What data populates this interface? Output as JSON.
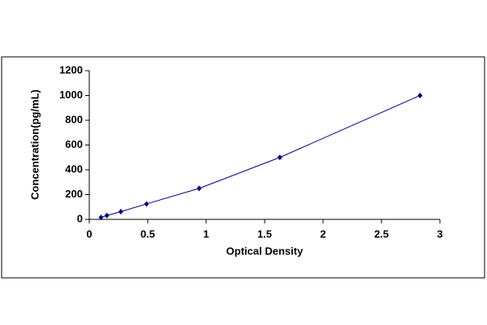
{
  "chart_data": {
    "type": "scatter",
    "x_label": "Optical Density",
    "y_label": "Concentration(pg/mL)",
    "series": [
      {
        "color": "#000080",
        "x": [
          0.1,
          0.15,
          0.27,
          0.49,
          0.94,
          1.63,
          2.83
        ],
        "values": [
          15.6,
          31.25,
          62.5,
          125,
          250,
          500,
          1000
        ]
      }
    ],
    "xlim": [
      0,
      3
    ],
    "xticks": [
      0,
      0.5,
      1,
      1.5,
      2,
      2.5,
      3
    ],
    "ylim": [
      0,
      1200
    ],
    "yticks": [
      0,
      200,
      400,
      600,
      800,
      1000,
      1200
    ],
    "grid": false
  }
}
